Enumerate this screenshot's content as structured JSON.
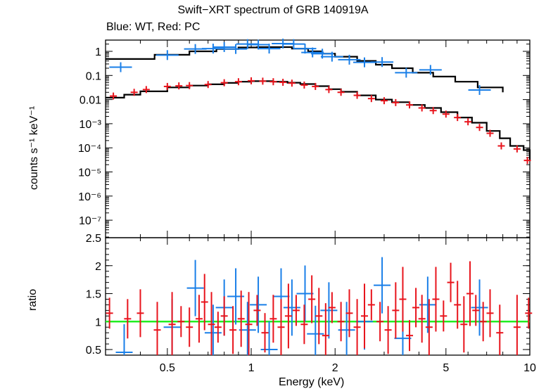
{
  "chart_data": [
    {
      "type": "scatter",
      "panel": "spectrum",
      "title": "Swift−XRT spectrum of GRB 140919A",
      "subtitle": "Blue: WT, Red: PC",
      "ylabel": "counts s⁻¹ keV⁻¹",
      "xlabel": "",
      "xscale": "log",
      "yscale": "log",
      "xlim": [
        0.3,
        10
      ],
      "ylim": [
        3e-08,
        3
      ],
      "y_tick_labels": [
        "1",
        "0.1",
        "0.01",
        "10⁻³",
        "10⁻⁴",
        "10⁻⁵",
        "10⁻⁶",
        "10⁻⁷"
      ],
      "series": [
        {
          "name": "WT",
          "color": "#1a7fe8",
          "points": [
            [
              0.34,
              0.22
            ],
            [
              0.5,
              0.7
            ],
            [
              0.63,
              1.25
            ],
            [
              0.73,
              1.3
            ],
            [
              0.8,
              1.5
            ],
            [
              0.88,
              1.25
            ],
            [
              0.97,
              2.0
            ],
            [
              1.06,
              1.9
            ],
            [
              1.16,
              1.3
            ],
            [
              1.3,
              2.1
            ],
            [
              1.42,
              2.0
            ],
            [
              1.56,
              1.3
            ],
            [
              1.66,
              0.9
            ],
            [
              1.8,
              0.8
            ],
            [
              1.95,
              0.6
            ],
            [
              2.25,
              0.45
            ],
            [
              2.55,
              0.35
            ],
            [
              2.95,
              0.36
            ],
            [
              3.6,
              0.13
            ],
            [
              4.4,
              0.17
            ],
            [
              6.6,
              0.025
            ]
          ],
          "model": [
            [
              0.3,
              0.48
            ],
            [
              0.45,
              0.72
            ],
            [
              0.6,
              1.0
            ],
            [
              0.75,
              1.25
            ],
            [
              0.9,
              1.45
            ],
            [
              1.05,
              1.5
            ],
            [
              1.2,
              1.5
            ],
            [
              1.4,
              1.3
            ],
            [
              1.6,
              1.0
            ],
            [
              1.8,
              0.8
            ],
            [
              2.0,
              0.6
            ],
            [
              2.4,
              0.4
            ],
            [
              2.8,
              0.28
            ],
            [
              3.2,
              0.2
            ],
            [
              3.8,
              0.13
            ],
            [
              4.5,
              0.09
            ],
            [
              5.4,
              0.055
            ],
            [
              6.5,
              0.032
            ],
            [
              8.0,
              0.02
            ]
          ]
        },
        {
          "name": "PC",
          "color": "#e8141c",
          "points": [
            [
              0.32,
              0.014
            ],
            [
              0.38,
              0.02
            ],
            [
              0.42,
              0.026
            ],
            [
              0.5,
              0.035
            ],
            [
              0.55,
              0.037
            ],
            [
              0.6,
              0.038
            ],
            [
              0.7,
              0.042
            ],
            [
              0.8,
              0.05
            ],
            [
              0.9,
              0.055
            ],
            [
              1.0,
              0.06
            ],
            [
              1.1,
              0.058
            ],
            [
              1.2,
              0.055
            ],
            [
              1.3,
              0.052
            ],
            [
              1.4,
              0.048
            ],
            [
              1.55,
              0.04
            ],
            [
              1.7,
              0.035
            ],
            [
              1.9,
              0.026
            ],
            [
              2.1,
              0.02
            ],
            [
              2.4,
              0.015
            ],
            [
              2.7,
              0.011
            ],
            [
              3.0,
              0.009
            ],
            [
              3.3,
              0.0075
            ],
            [
              3.7,
              0.006
            ],
            [
              4.1,
              0.0045
            ],
            [
              4.5,
              0.0035
            ],
            [
              5.0,
              0.0025
            ],
            [
              5.5,
              0.0018
            ],
            [
              6.0,
              0.0012
            ],
            [
              6.6,
              0.0007
            ],
            [
              7.2,
              0.0004
            ],
            [
              7.9,
              0.00012
            ],
            [
              9.0,
              9e-05
            ],
            [
              9.8,
              3e-05
            ]
          ],
          "model": [
            [
              0.3,
              0.012
            ],
            [
              0.35,
              0.016
            ],
            [
              0.4,
              0.022
            ],
            [
              0.5,
              0.032
            ],
            [
              0.6,
              0.038
            ],
            [
              0.7,
              0.043
            ],
            [
              0.8,
              0.049
            ],
            [
              0.9,
              0.055
            ],
            [
              1.0,
              0.058
            ],
            [
              1.1,
              0.058
            ],
            [
              1.2,
              0.055
            ],
            [
              1.35,
              0.05
            ],
            [
              1.5,
              0.044
            ],
            [
              1.7,
              0.036
            ],
            [
              1.9,
              0.027
            ],
            [
              2.1,
              0.021
            ],
            [
              2.4,
              0.015
            ],
            [
              2.8,
              0.01
            ],
            [
              3.2,
              0.0078
            ],
            [
              3.7,
              0.006
            ],
            [
              4.2,
              0.0045
            ],
            [
              4.8,
              0.003
            ],
            [
              5.5,
              0.0018
            ],
            [
              6.2,
              0.0011
            ],
            [
              7.0,
              0.0005
            ],
            [
              7.8,
              0.00025
            ],
            [
              8.5,
              0.00012
            ],
            [
              9.5,
              8e-05
            ],
            [
              10,
              3e-05
            ]
          ]
        }
      ]
    },
    {
      "type": "scatter",
      "panel": "ratio",
      "ylabel": "ratio",
      "xlabel": "Energy (keV)",
      "xscale": "log",
      "xlim": [
        0.3,
        10
      ],
      "ylim": [
        0.4,
        2.5
      ],
      "x_tick_labels": [
        "0.5",
        "1",
        "2",
        "5",
        "10"
      ],
      "y_tick_labels": [
        "2.5",
        "2",
        "1.5",
        "1",
        "0.5"
      ],
      "reference_line": {
        "y": 1,
        "color": "#22ee22"
      },
      "series": [
        {
          "name": "WT",
          "color": "#1a7fe8",
          "points": [
            [
              0.35,
              0.45
            ],
            [
              0.52,
              0.9
            ],
            [
              0.63,
              1.6
            ],
            [
              0.73,
              0.8
            ],
            [
              0.8,
              1.25
            ],
            [
              0.88,
              1.45
            ],
            [
              0.97,
              0.85
            ],
            [
              1.06,
              1.3
            ],
            [
              1.16,
              0.5
            ],
            [
              1.28,
              1.45
            ],
            [
              1.4,
              1.25
            ],
            [
              1.56,
              1.5
            ],
            [
              1.7,
              0.78
            ],
            [
              1.9,
              1.2
            ],
            [
              2.2,
              0.85
            ],
            [
              2.55,
              1.0
            ],
            [
              2.95,
              1.65
            ],
            [
              3.5,
              0.7
            ],
            [
              4.3,
              1.3
            ],
            [
              6.6,
              1.25
            ]
          ]
        },
        {
          "name": "PC",
          "color": "#e8141c",
          "points": [
            [
              0.31,
              1.15
            ],
            [
              0.36,
              1.05
            ],
            [
              0.4,
              1.15
            ],
            [
              0.46,
              0.85
            ],
            [
              0.52,
              0.95
            ],
            [
              0.56,
              1.0
            ],
            [
              0.6,
              0.9
            ],
            [
              0.65,
              1.05
            ],
            [
              0.68,
              1.35
            ],
            [
              0.72,
              0.95
            ],
            [
              0.76,
              0.9
            ],
            [
              0.8,
              1.1
            ],
            [
              0.86,
              0.85
            ],
            [
              0.92,
              1.05
            ],
            [
              0.98,
              0.95
            ],
            [
              1.05,
              1.2
            ],
            [
              1.12,
              0.8
            ],
            [
              1.2,
              1.05
            ],
            [
              1.28,
              0.9
            ],
            [
              1.36,
              1.1
            ],
            [
              1.45,
              1.2
            ],
            [
              1.55,
              0.95
            ],
            [
              1.65,
              1.4
            ],
            [
              1.75,
              1.1
            ],
            [
              1.85,
              0.75
            ],
            [
              1.95,
              1.25
            ],
            [
              2.1,
              1.0
            ],
            [
              2.25,
              1.15
            ],
            [
              2.4,
              0.9
            ],
            [
              2.55,
              1.1
            ],
            [
              2.7,
              1.3
            ],
            [
              2.9,
              1.0
            ],
            [
              3.1,
              0.85
            ],
            [
              3.3,
              1.2
            ],
            [
              3.5,
              1.4
            ],
            [
              3.7,
              0.75
            ],
            [
              3.9,
              1.25
            ],
            [
              4.1,
              1.05
            ],
            [
              4.35,
              0.9
            ],
            [
              4.6,
              1.4
            ],
            [
              4.9,
              1.1
            ],
            [
              5.2,
              1.7
            ],
            [
              5.5,
              1.3
            ],
            [
              5.8,
              0.95
            ],
            [
              6.1,
              1.5
            ],
            [
              6.4,
              1.2
            ],
            [
              6.8,
              1.0
            ],
            [
              7.2,
              1.15
            ],
            [
              7.8,
              0.8
            ],
            [
              9.0,
              0.9
            ],
            [
              9.9,
              1.15
            ]
          ]
        }
      ]
    }
  ]
}
